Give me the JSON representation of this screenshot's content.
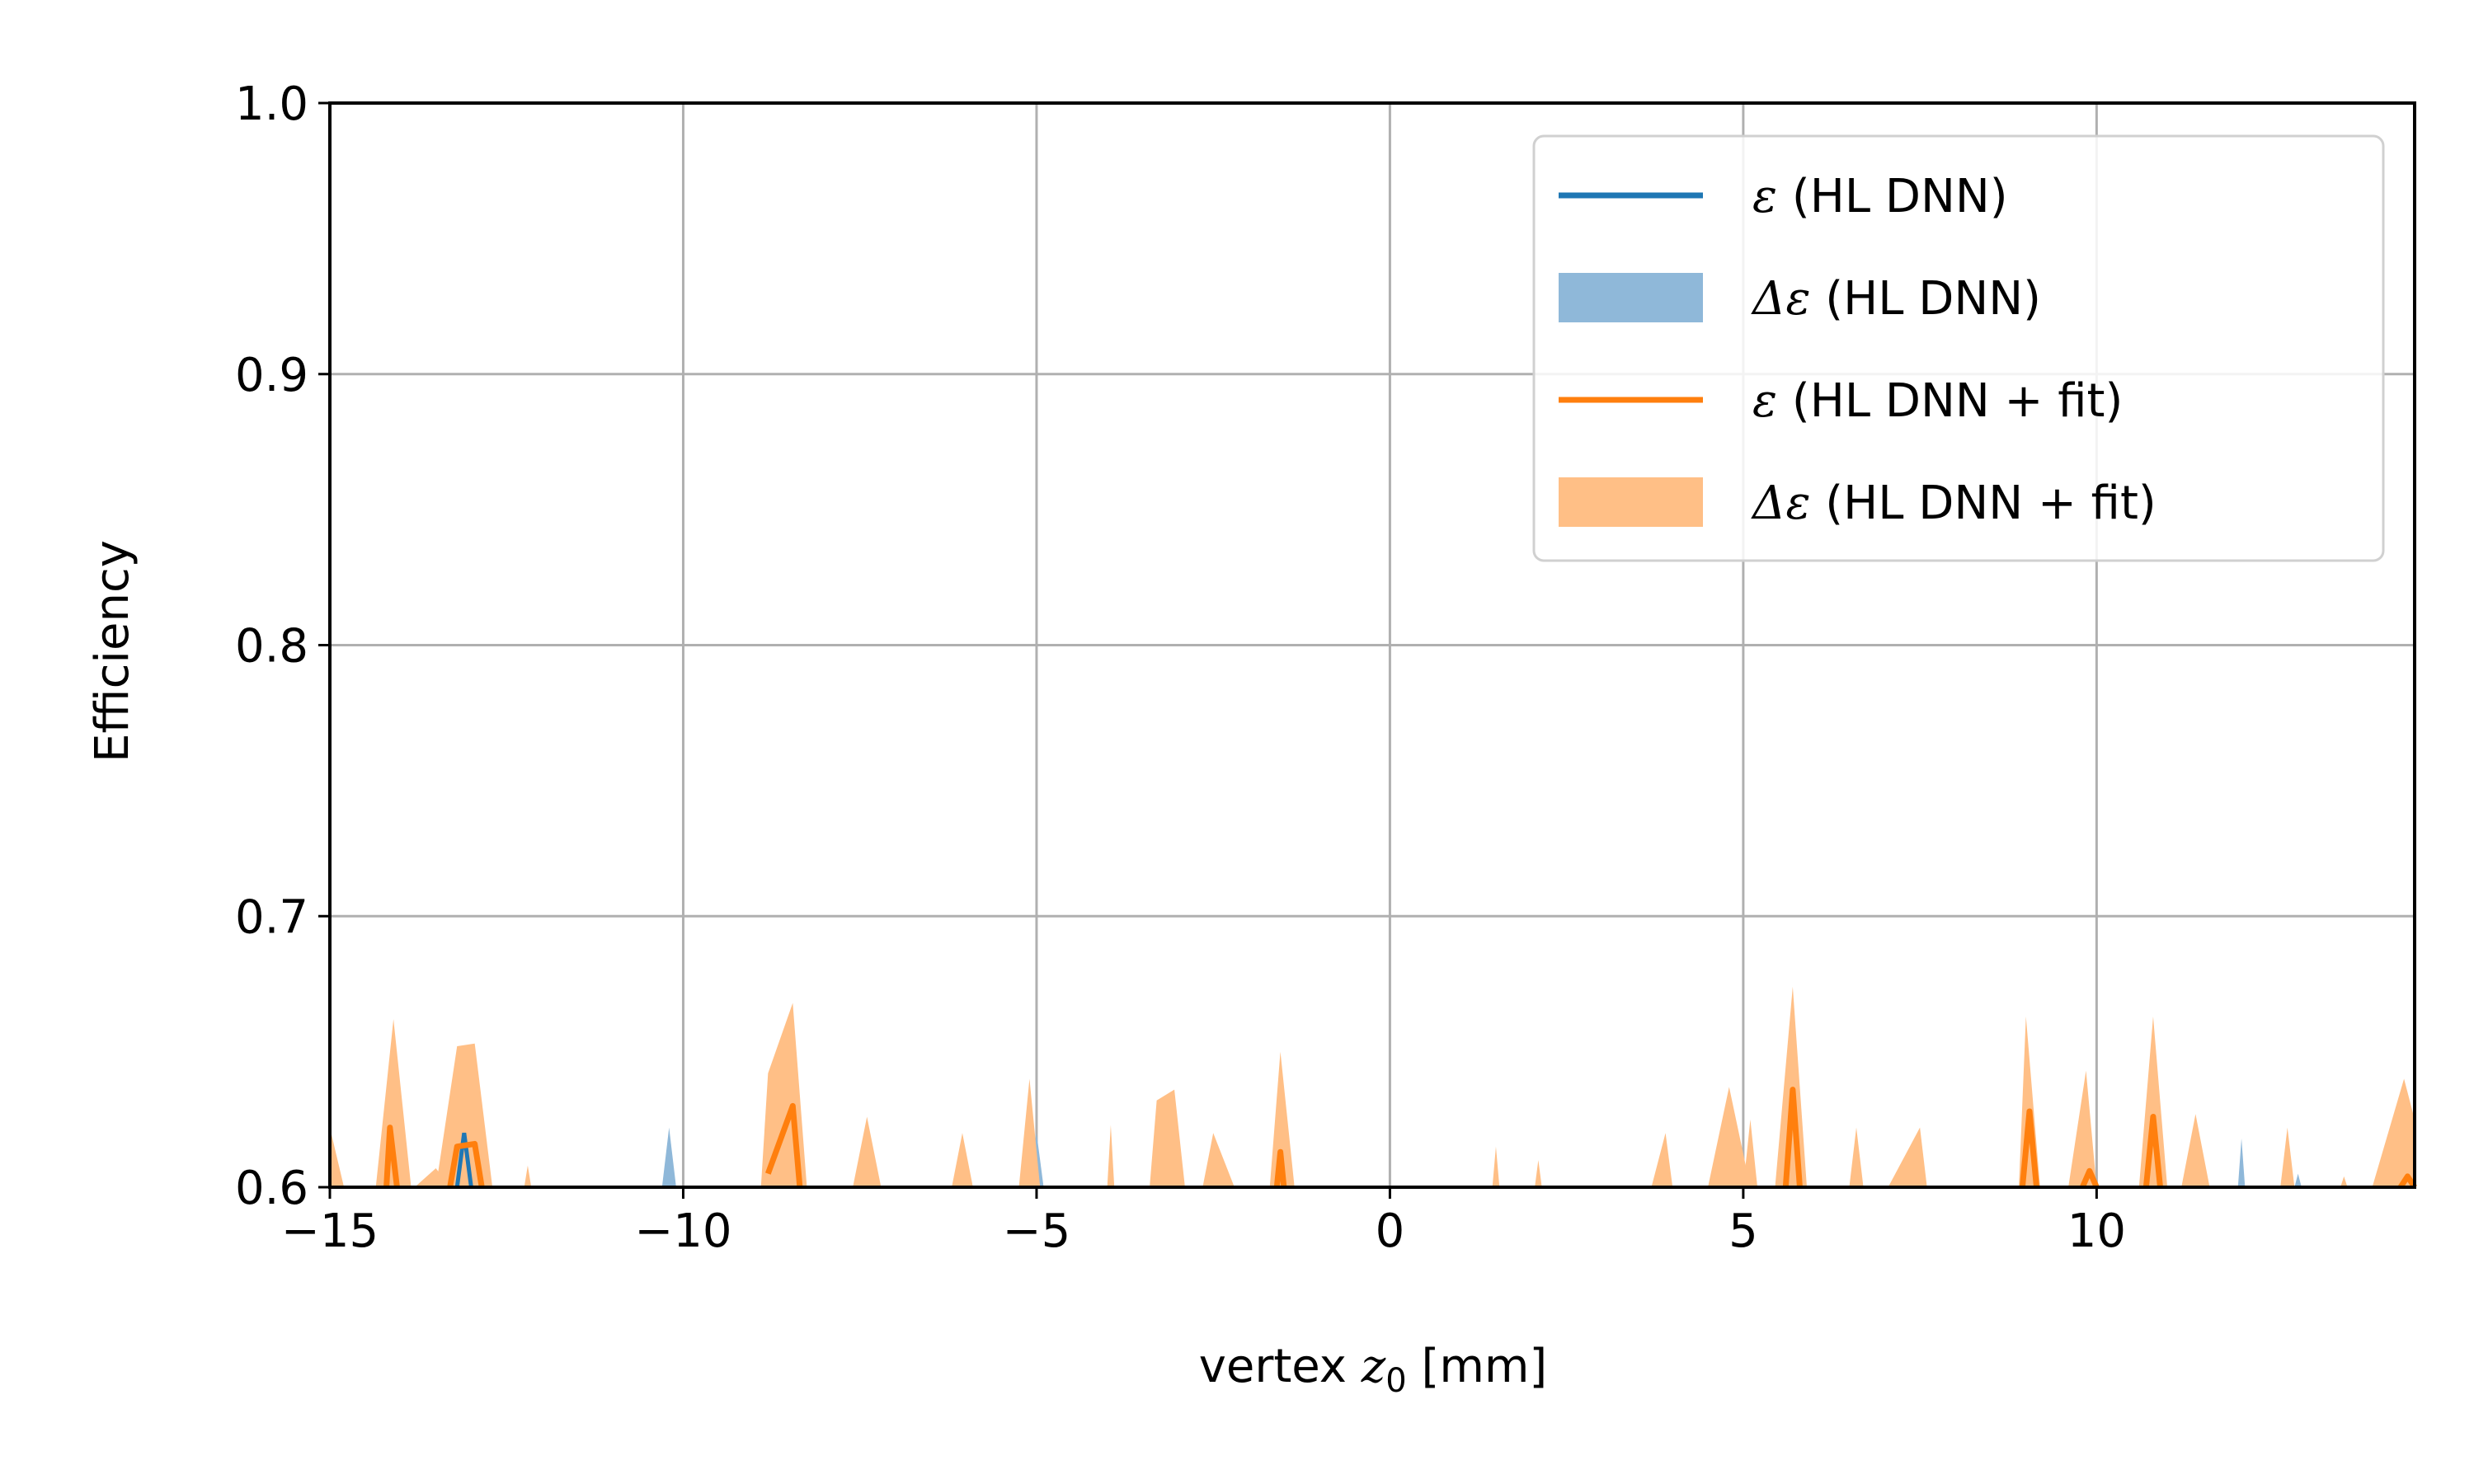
{
  "chart_data": {
    "type": "line",
    "title": "",
    "xlabel_prefix": "vertex ",
    "xlabel_var": "z",
    "xlabel_sub": "0",
    "xlabel_suffix": " [mm]",
    "ylabel": "Efficiency",
    "xlim": [
      -15,
      14.5
    ],
    "ylim": [
      0.6,
      1.0
    ],
    "xticks": [
      -15,
      -10,
      -5,
      0,
      5,
      10
    ],
    "xtick_labels": [
      "−15",
      "−10",
      "−5",
      "0",
      "5",
      "10"
    ],
    "yticks": [
      0.6,
      0.7,
      0.8,
      0.9,
      1.0
    ],
    "ytick_labels": [
      "0.6",
      "0.7",
      "0.8",
      "0.9",
      "1.0"
    ],
    "grid": true,
    "legend_position": "top-right",
    "colors": {
      "hl_line": "#1f77b4",
      "hl_band": "#8fb8d9",
      "fit_line": "#ff7f0e",
      "fit_band": "#ffbf86",
      "grid": "#b0b0b0"
    },
    "series": [
      {
        "name": "ε (HL DNN)",
        "legend_symbol": "ε",
        "legend_rest": " (HL DNN)",
        "kind": "line",
        "color": "#1f77b4",
        "x": [
          -13.2,
          -13.1,
          -13.0
        ],
        "y": [
          0.6,
          0.62,
          0.6
        ]
      },
      {
        "name": "Δε (HL DNN)",
        "legend_symbol": "Δε",
        "legend_rest": " (HL DNN)",
        "kind": "band",
        "color": "#8fb8d9",
        "spikes": [
          [
            -13.3,
            -13.2,
            -13.1,
            0.635
          ],
          [
            -10.3,
            -10.2,
            -10.1,
            0.622
          ],
          [
            -5.1,
            -5.0,
            -4.9,
            0.62
          ],
          [
            5.0,
            5.1,
            5.2,
            0.62
          ],
          [
            9.6,
            9.7,
            9.8,
            0.61
          ],
          [
            12.0,
            12.05,
            12.1,
            0.618
          ],
          [
            12.8,
            12.85,
            12.9,
            0.605
          ]
        ]
      },
      {
        "name": "ε (HL DNN + fit)",
        "legend_symbol": "ε",
        "legend_rest": " (HL DNN + fit)",
        "kind": "line",
        "color": "#ff7f0e",
        "segments": [
          {
            "x": [
              -14.2,
              -14.15,
              -14.05
            ],
            "y": [
              0.6,
              0.622,
              0.6
            ]
          },
          {
            "x": [
              -13.3,
              -13.2,
              -12.95,
              -12.85
            ],
            "y": [
              0.6,
              0.615,
              0.616,
              0.6
            ]
          },
          {
            "x": [
              -8.8,
              -8.45,
              -8.35
            ],
            "y": [
              0.605,
              0.63,
              0.6
            ]
          },
          {
            "x": [
              -1.6,
              -1.55,
              -1.5
            ],
            "y": [
              0.6,
              0.613,
              0.6
            ]
          },
          {
            "x": [
              5.6,
              5.7,
              5.8
            ],
            "y": [
              0.6,
              0.636,
              0.6
            ]
          },
          {
            "x": [
              8.95,
              9.05,
              9.15
            ],
            "y": [
              0.6,
              0.628,
              0.6
            ]
          },
          {
            "x": [
              9.8,
              9.9,
              10.0
            ],
            "y": [
              0.6,
              0.606,
              0.6
            ]
          },
          {
            "x": [
              10.7,
              10.8,
              10.9
            ],
            "y": [
              0.6,
              0.626,
              0.6
            ]
          },
          {
            "x": [
              14.3,
              14.4,
              14.5
            ],
            "y": [
              0.6,
              0.604,
              0.6
            ]
          }
        ]
      },
      {
        "name": "Δε (HL DNN + fit)",
        "legend_symbol": "Δε",
        "legend_rest": " (HL DNN + fit)",
        "kind": "band",
        "color": "#ffbf86",
        "polys": [
          {
            "x": [
              -15.0,
              -15.0,
              -14.8
            ],
            "y": [
              0.6,
              0.622,
              0.6
            ]
          },
          {
            "x": [
              -14.35,
              -14.1,
              -13.85
            ],
            "y": [
              0.6,
              0.662,
              0.6
            ]
          },
          {
            "x": [
              -13.8,
              -13.5,
              -13.3
            ],
            "y": [
              0.6,
              0.607,
              0.6
            ]
          },
          {
            "x": [
              -13.5,
              -13.2,
              -12.95,
              -12.7
            ],
            "y": [
              0.6,
              0.652,
              0.653,
              0.6
            ]
          },
          {
            "x": [
              -12.25,
              -12.2,
              -12.15
            ],
            "y": [
              0.6,
              0.608,
              0.6
            ]
          },
          {
            "x": [
              -8.9,
              -8.8,
              -8.45,
              -8.25
            ],
            "y": [
              0.6,
              0.642,
              0.668,
              0.6
            ]
          },
          {
            "x": [
              -7.6,
              -7.4,
              -7.2
            ],
            "y": [
              0.6,
              0.626,
              0.6
            ]
          },
          {
            "x": [
              -6.2,
              -6.05,
              -5.9
            ],
            "y": [
              0.6,
              0.62,
              0.6
            ]
          },
          {
            "x": [
              -5.25,
              -5.1,
              -4.95
            ],
            "y": [
              0.6,
              0.64,
              0.6
            ]
          },
          {
            "x": [
              -4.0,
              -3.95,
              -3.9
            ],
            "y": [
              0.6,
              0.623,
              0.6
            ]
          },
          {
            "x": [
              -3.4,
              -3.3,
              -3.05,
              -2.9
            ],
            "y": [
              0.6,
              0.632,
              0.636,
              0.6
            ]
          },
          {
            "x": [
              -2.65,
              -2.5,
              -2.2
            ],
            "y": [
              0.6,
              0.62,
              0.6
            ]
          },
          {
            "x": [
              -1.7,
              -1.55,
              -1.35
            ],
            "y": [
              0.6,
              0.65,
              0.6
            ]
          },
          {
            "x": [
              1.45,
              1.5,
              1.55
            ],
            "y": [
              0.6,
              0.615,
              0.6
            ]
          },
          {
            "x": [
              2.05,
              2.1,
              2.15
            ],
            "y": [
              0.6,
              0.61,
              0.6
            ]
          },
          {
            "x": [
              3.7,
              3.9,
              4.0
            ],
            "y": [
              0.6,
              0.62,
              0.6
            ]
          },
          {
            "x": [
              4.5,
              4.8,
              5.1
            ],
            "y": [
              0.6,
              0.637,
              0.6
            ]
          },
          {
            "x": [
              5.0,
              5.1,
              5.2
            ],
            "y": [
              0.6,
              0.625,
              0.6
            ]
          },
          {
            "x": [
              5.45,
              5.7,
              5.9
            ],
            "y": [
              0.6,
              0.674,
              0.6
            ]
          },
          {
            "x": [
              6.5,
              6.6,
              6.7
            ],
            "y": [
              0.6,
              0.622,
              0.6
            ]
          },
          {
            "x": [
              7.05,
              7.5,
              7.6
            ],
            "y": [
              0.6,
              0.622,
              0.6
            ]
          },
          {
            "x": [
              8.9,
              9.0,
              9.2
            ],
            "y": [
              0.6,
              0.663,
              0.6
            ]
          },
          {
            "x": [
              9.6,
              9.85,
              10.0
            ],
            "y": [
              0.6,
              0.643,
              0.6
            ]
          },
          {
            "x": [
              10.6,
              10.8,
              11.0
            ],
            "y": [
              0.6,
              0.663,
              0.6
            ]
          },
          {
            "x": [
              11.2,
              11.4,
              11.6
            ],
            "y": [
              0.6,
              0.627,
              0.6
            ]
          },
          {
            "x": [
              12.6,
              12.7,
              12.8
            ],
            "y": [
              0.6,
              0.622,
              0.6
            ]
          },
          {
            "x": [
              13.45,
              13.5,
              13.55
            ],
            "y": [
              0.6,
              0.604,
              0.6
            ]
          },
          {
            "x": [
              13.9,
              14.35,
              14.5,
              14.5
            ],
            "y": [
              0.6,
              0.64,
              0.625,
              0.6
            ]
          }
        ]
      }
    ]
  }
}
